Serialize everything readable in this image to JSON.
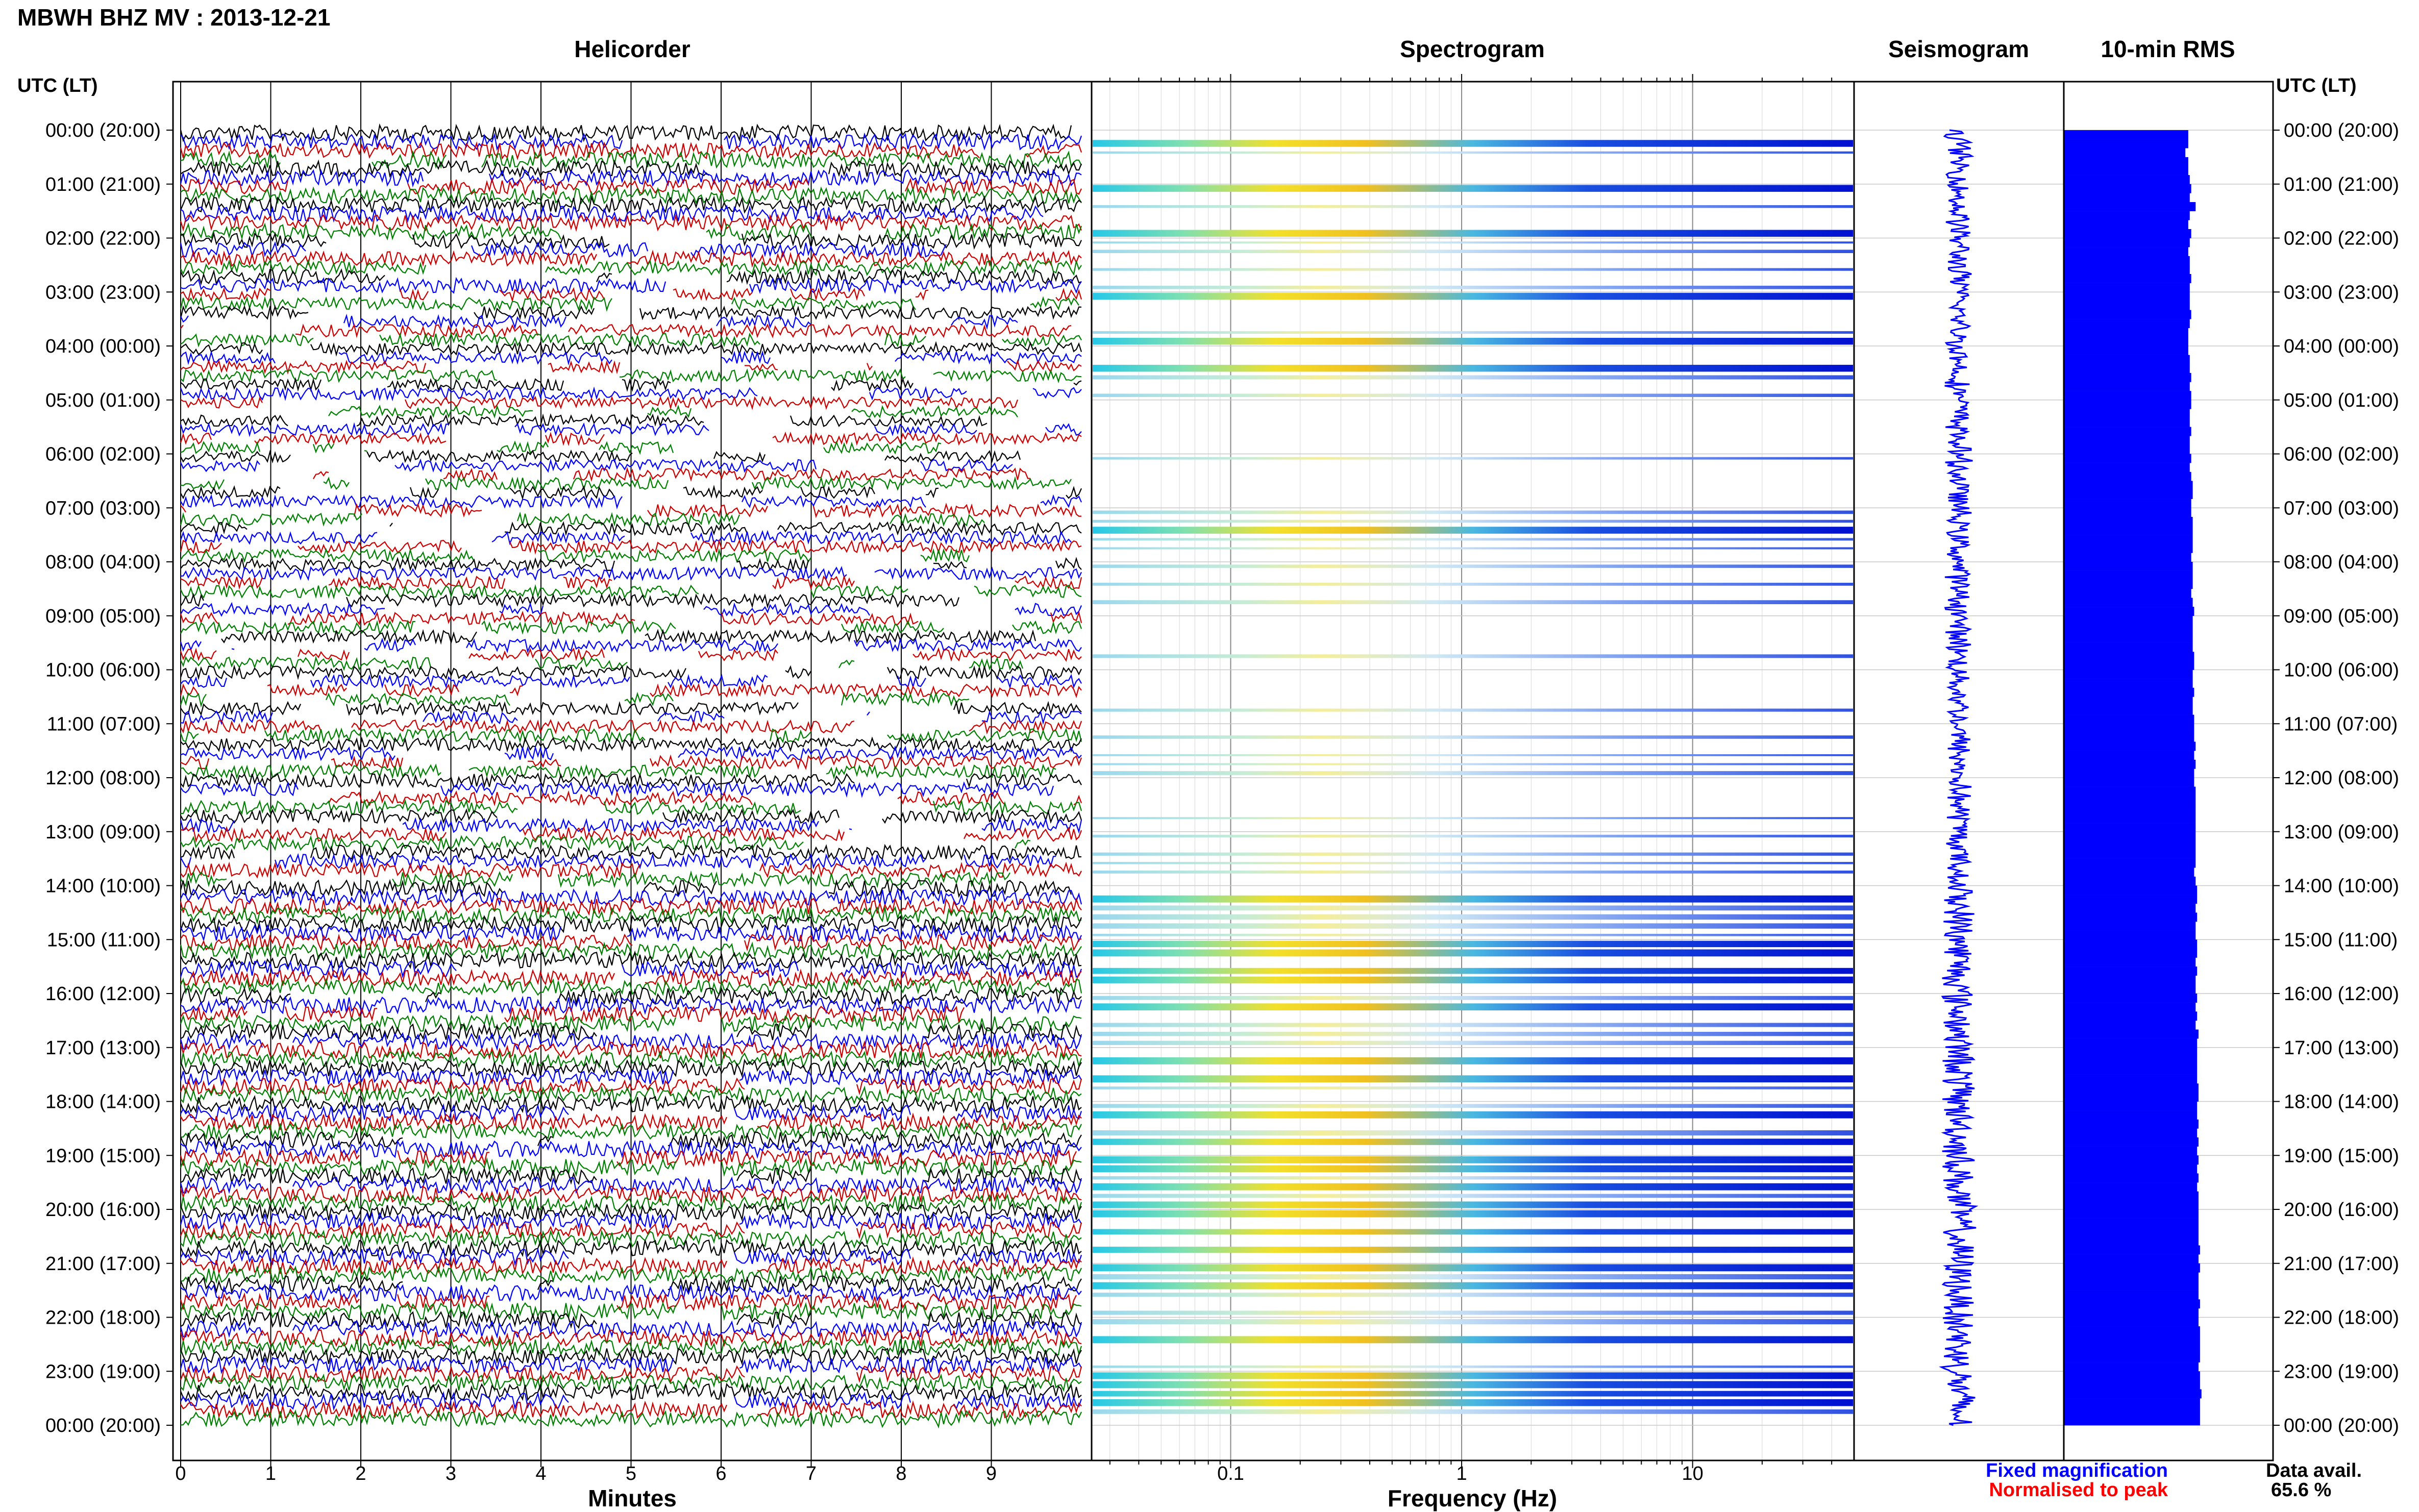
{
  "title": "MBWH BHZ MV : 2013-12-21",
  "panels": {
    "helicorder": "Helicorder",
    "spectrogram": "Spectrogram",
    "seismogram": "Seismogram",
    "rms": "10-min RMS"
  },
  "time_axis_header_left": "UTC (LT)",
  "time_axis_header_right": "UTC (LT)",
  "legend": {
    "fixed": "Fixed magnification",
    "normalised": "Normalised to peak",
    "fixed_color": "#0000ff",
    "normalised_color": "#ff0000"
  },
  "data_avail": {
    "label": "Data avail.",
    "value": "65.6 %"
  },
  "chart_data": [
    {
      "type": "line",
      "panel": "helicorder",
      "xlabel": "Minutes",
      "x_ticks": [
        "0",
        "1",
        "2",
        "3",
        "4",
        "5",
        "6",
        "7",
        "8",
        "9"
      ],
      "xlim": [
        0,
        10
      ],
      "y_ticks": [
        "00:00 (20:00)",
        "01:00 (21:00)",
        "02:00 (22:00)",
        "03:00 (23:00)",
        "04:00 (00:00)",
        "05:00 (01:00)",
        "06:00 (02:00)",
        "07:00 (03:00)",
        "08:00 (04:00)",
        "09:00 (05:00)",
        "10:00 (06:00)",
        "11:00 (07:00)",
        "12:00 (08:00)",
        "13:00 (09:00)",
        "14:00 (10:00)",
        "15:00 (11:00)",
        "16:00 (12:00)",
        "17:00 (13:00)",
        "18:00 (14:00)",
        "19:00 (15:00)",
        "20:00 (16:00)",
        "21:00 (17:00)",
        "22:00 (18:00)",
        "23:00 (19:00)",
        "00:00 (20:00)"
      ],
      "trace_colors": [
        "#000000",
        "#0000ff",
        "#cc0000",
        "#008000"
      ],
      "activity_by_hour": [
        0.9,
        0.9,
        0.8,
        0.6,
        0.55,
        0.5,
        0.55,
        0.6,
        0.6,
        0.6,
        0.6,
        0.65,
        0.7,
        0.75,
        0.95,
        0.95,
        0.95,
        0.95,
        0.95,
        0.95,
        0.95,
        0.95,
        0.95,
        0.95
      ]
    },
    {
      "type": "heatmap",
      "panel": "spectrogram",
      "xlabel": "Frequency (Hz)",
      "x_scale": "log",
      "x_ticks": [
        "0.1",
        "1",
        "10"
      ],
      "xlim": [
        0.025,
        50
      ],
      "strong_band_hours": [
        0.2,
        1.0,
        1.8,
        3.0,
        3.8,
        4.4,
        7.4,
        14.1,
        14.2,
        15.2,
        16.2,
        17.1,
        17.5,
        18.1,
        19.0,
        19.5,
        20.0,
        21.0,
        21.3,
        22.4,
        23.2
      ]
    },
    {
      "type": "line",
      "panel": "seismogram"
    },
    {
      "type": "bar",
      "panel": "rms",
      "orientation": "horizontal",
      "bars_per_hour": 6,
      "values": [
        0.85,
        0.85,
        0.83,
        0.85,
        0.85,
        0.86,
        0.87,
        0.86,
        0.9,
        0.86,
        0.85,
        0.87,
        0.86,
        0.85,
        0.86,
        0.86,
        0.87,
        0.86,
        0.86,
        0.86,
        0.87,
        0.86,
        0.85,
        0.85,
        0.85,
        0.86,
        0.86,
        0.87,
        0.86,
        0.87,
        0.87,
        0.86,
        0.86,
        0.87,
        0.86,
        0.86,
        0.87,
        0.86,
        0.87,
        0.88,
        0.88,
        0.87,
        0.87,
        0.88,
        0.88,
        0.88,
        0.88,
        0.87,
        0.88,
        0.88,
        0.88,
        0.87,
        0.88,
        0.89,
        0.88,
        0.88,
        0.88,
        0.88,
        0.89,
        0.89,
        0.88,
        0.88,
        0.89,
        0.88,
        0.88,
        0.89,
        0.89,
        0.89,
        0.9,
        0.89,
        0.9,
        0.89,
        0.89,
        0.9,
        0.9,
        0.9,
        0.9,
        0.9,
        0.9,
        0.9,
        0.9,
        0.9,
        0.89,
        0.9,
        0.91,
        0.91,
        0.9,
        0.91,
        0.9,
        0.9,
        0.91,
        0.91,
        0.9,
        0.91,
        0.9,
        0.9,
        0.91,
        0.9,
        0.91,
        0.9,
        0.92,
        0.91,
        0.91,
        0.91,
        0.91,
        0.91,
        0.92,
        0.92,
        0.91,
        0.91,
        0.92,
        0.91,
        0.92,
        0.91,
        0.92,
        0.91,
        0.92,
        0.91,
        0.92,
        0.92,
        0.92,
        0.92,
        0.92,
        0.92,
        0.93,
        0.92,
        0.93,
        0.92,
        0.92,
        0.92,
        0.93,
        0.92,
        0.92,
        0.93,
        0.93,
        0.93,
        0.93,
        0.92,
        0.93,
        0.93,
        0.94,
        0.93,
        0.93,
        0.93
      ]
    }
  ]
}
